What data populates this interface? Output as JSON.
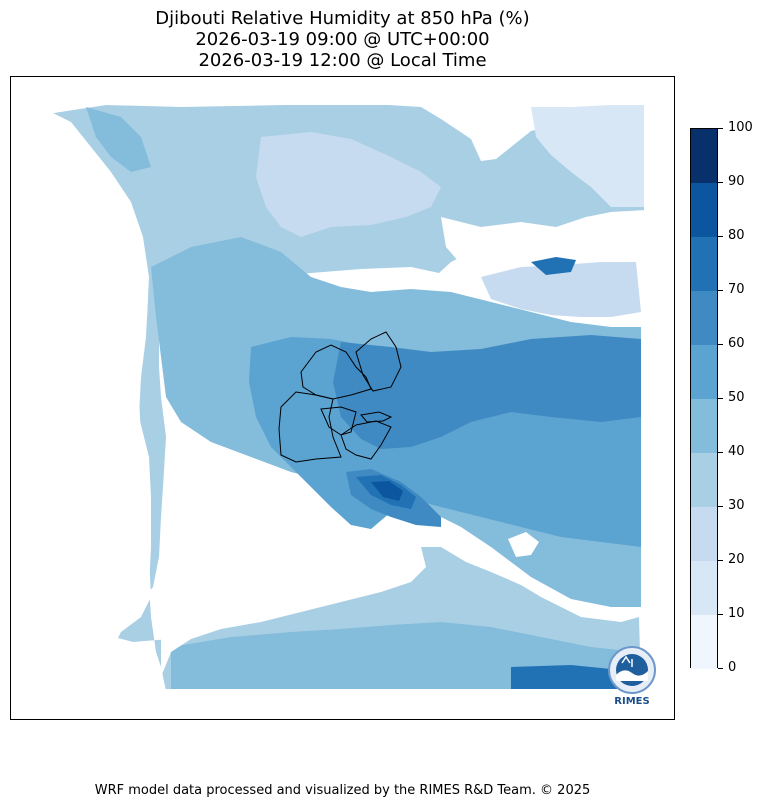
{
  "title": {
    "line1": "Djibouti Relative Humidity at 850 hPa (%)",
    "line2": "2026-03-19 09:00 @ UTC+00:00",
    "line3": "2026-03-19 12:00 @ Local Time"
  },
  "colorbar": {
    "levels": [
      0,
      10,
      20,
      30,
      40,
      50,
      60,
      70,
      80,
      90,
      100
    ],
    "labels": [
      "0",
      "10",
      "20",
      "30",
      "40",
      "50",
      "60",
      "70",
      "80",
      "90",
      "100"
    ],
    "colors": [
      "#f0f6fd",
      "#d8e7f5",
      "#c6dbef",
      "#a9cfe5",
      "#84bcdb",
      "#5ba3d0",
      "#3f8ac3",
      "#2171b5",
      "#0c56a0",
      "#08306b"
    ]
  },
  "logo": {
    "text": "RIMES"
  },
  "footer": "WRF model data processed and visualized by the RIMES R&D Team. © 2025"
}
